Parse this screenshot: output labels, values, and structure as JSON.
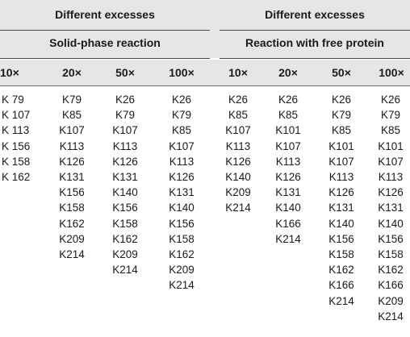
{
  "table": {
    "groups": [
      {
        "title": "Different excesses",
        "subtitle": "Solid-phase reaction"
      },
      {
        "title": "Different excesses",
        "subtitle": "Reaction with free protein"
      }
    ],
    "columns": [
      {
        "header": "10×",
        "values": [
          "K 79",
          "K 107",
          "K 113",
          "K 156",
          "K 158",
          "K 162"
        ]
      },
      {
        "header": "20×",
        "values": [
          "K79",
          "K85",
          "K107",
          "K113",
          "K126",
          "K131",
          "K156",
          "K158",
          "K162",
          "K209",
          "K214"
        ]
      },
      {
        "header": "50×",
        "values": [
          "K26",
          "K79",
          "K107",
          "K113",
          "K126",
          "K131",
          "K140",
          "K156",
          "K158",
          "K162",
          "K209",
          "K214"
        ]
      },
      {
        "header": "100×",
        "values": [
          "K26",
          "K79",
          "K85",
          "K107",
          "K113",
          "K126",
          "K131",
          "K140",
          "K156",
          "K158",
          "K162",
          "K209",
          "K214"
        ]
      },
      {
        "header": "10×",
        "values": [
          "K26",
          "K85",
          "K107",
          "K113",
          "K126",
          "K140",
          "K209",
          "K214"
        ]
      },
      {
        "header": "20×",
        "values": [
          "K26",
          "K85",
          "K101",
          "K107",
          "K113",
          "K126",
          "K131",
          "K140",
          "K166",
          "K214"
        ]
      },
      {
        "header": "50×",
        "values": [
          "K26",
          "K79",
          "K85",
          "K101",
          "K107",
          "K113",
          "K126",
          "K131",
          "K140",
          "K156",
          "K158",
          "K162",
          "K166",
          "K214"
        ]
      },
      {
        "header": "100×",
        "values": [
          "K26",
          "K79",
          "K85",
          "K101",
          "K107",
          "K113",
          "K126",
          "K131",
          "K140",
          "K156",
          "K158",
          "K162",
          "K166",
          "K209",
          "K214"
        ]
      }
    ]
  }
}
